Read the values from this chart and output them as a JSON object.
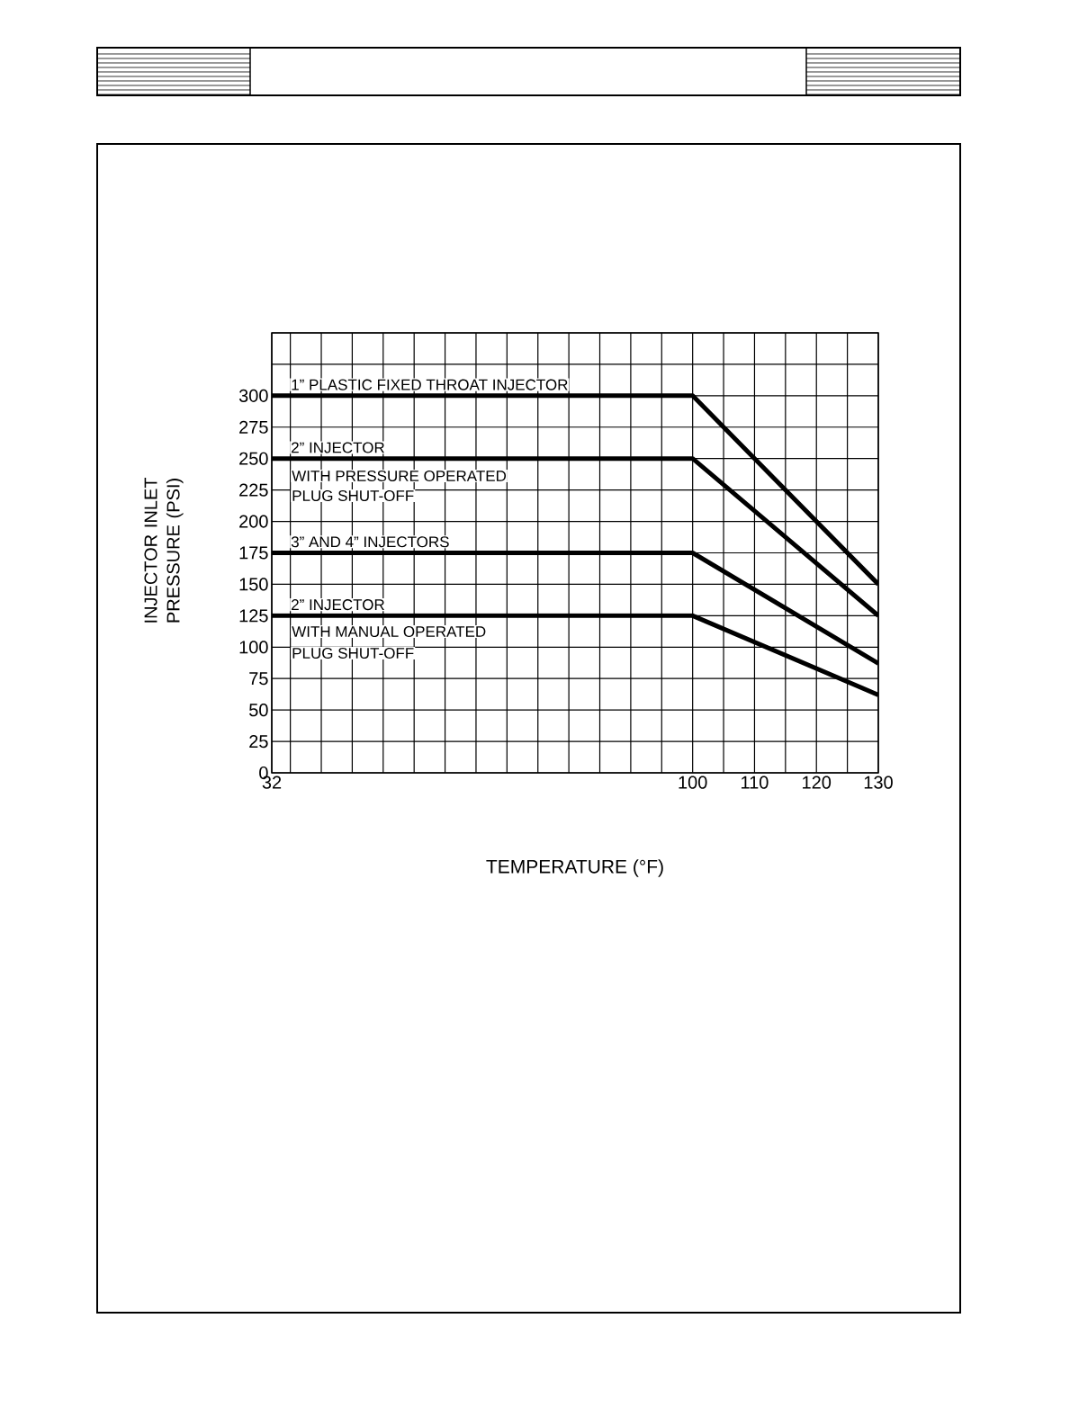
{
  "chart_data": {
    "type": "line",
    "xlabel": "TEMPERATURE (°F)",
    "ylabel": "INJECTOR INLET PRESSURE (PSI)",
    "xlim": [
      32,
      130
    ],
    "ylim": [
      0,
      350
    ],
    "xticks": [
      32,
      {
        "value": 35,
        "label": null
      },
      {
        "value": 40,
        "label": null
      },
      {
        "value": 45,
        "label": null
      },
      {
        "value": 50,
        "label": null
      },
      {
        "value": 55,
        "label": null
      },
      {
        "value": 60,
        "label": null
      },
      {
        "value": 65,
        "label": null
      },
      {
        "value": 70,
        "label": null
      },
      {
        "value": 75,
        "label": null
      },
      {
        "value": 80,
        "label": null
      },
      {
        "value": 85,
        "label": null
      },
      {
        "value": 90,
        "label": null
      },
      {
        "value": 95,
        "label": null
      },
      100,
      {
        "value": 105,
        "label": null
      },
      110,
      {
        "value": 115,
        "label": null
      },
      120,
      {
        "value": 125,
        "label": null
      },
      130
    ],
    "yticks": [
      0,
      25,
      50,
      75,
      100,
      125,
      150,
      175,
      200,
      225,
      250,
      275,
      300,
      {
        "value": 325,
        "label": null
      },
      {
        "value": 350,
        "label": null
      }
    ],
    "grid": true,
    "legend": false,
    "marker": "none",
    "line_style": "solid",
    "series": [
      {
        "name": "1” PLASTIC FIXED THROAT INJECTOR",
        "color": "#000000",
        "x": [
          32,
          100,
          130
        ],
        "values": [
          300,
          300,
          150
        ]
      },
      {
        "name": "2” INJECTOR",
        "color": "#000000",
        "x": [
          32,
          100,
          130
        ],
        "values": [
          250,
          250,
          125
        ]
      },
      {
        "name": "3” AND 4” INJECTORS",
        "color": "#000000",
        "x": [
          32,
          100,
          130
        ],
        "values": [
          175,
          175,
          87
        ]
      },
      {
        "name": "2” INJECTOR",
        "color": "#000000",
        "x": [
          32,
          100,
          130
        ],
        "values": [
          125,
          125,
          62
        ]
      }
    ],
    "annotations": [
      "WITH PRESSURE OPERATED",
      "PLUG SHUT-OFF",
      "WITH MANUAL OPERATED",
      "PLUG SHUT-OFF"
    ]
  }
}
